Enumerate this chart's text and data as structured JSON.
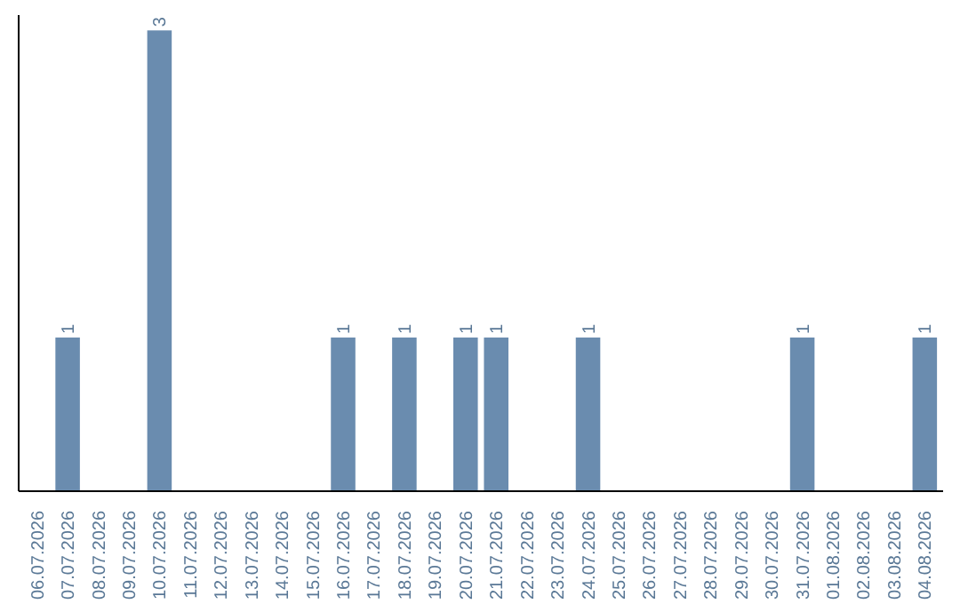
{
  "chart_data": {
    "type": "bar",
    "categories": [
      "06.07.2026",
      "07.07.2026",
      "08.07.2026",
      "09.07.2026",
      "10.07.2026",
      "11.07.2026",
      "12.07.2026",
      "13.07.2026",
      "14.07.2026",
      "15.07.2026",
      "16.07.2026",
      "17.07.2026",
      "18.07.2026",
      "19.07.2026",
      "20.07.2026",
      "21.07.2026",
      "22.07.2026",
      "23.07.2026",
      "24.07.2026",
      "25.07.2026",
      "26.07.2026",
      "27.07.2026",
      "28.07.2026",
      "29.07.2026",
      "30.07.2026",
      "31.07.2026",
      "01.08.2026",
      "02.08.2026",
      "03.08.2026",
      "04.08.2026"
    ],
    "values": [
      0,
      1,
      0,
      0,
      3,
      0,
      0,
      0,
      0,
      0,
      1,
      0,
      1,
      0,
      1,
      1,
      0,
      0,
      1,
      0,
      0,
      0,
      0,
      0,
      0,
      1,
      0,
      0,
      0,
      1
    ],
    "value_labels": [
      null,
      "1",
      null,
      null,
      "3",
      null,
      null,
      null,
      null,
      null,
      "1",
      null,
      "1",
      null,
      "1",
      "1",
      null,
      null,
      "1",
      null,
      null,
      null,
      null,
      null,
      null,
      "1",
      null,
      null,
      null,
      "1"
    ],
    "color": "#6a8caf",
    "ylim": [
      0,
      3.1
    ],
    "tick_labels": "x",
    "grid": false
  }
}
